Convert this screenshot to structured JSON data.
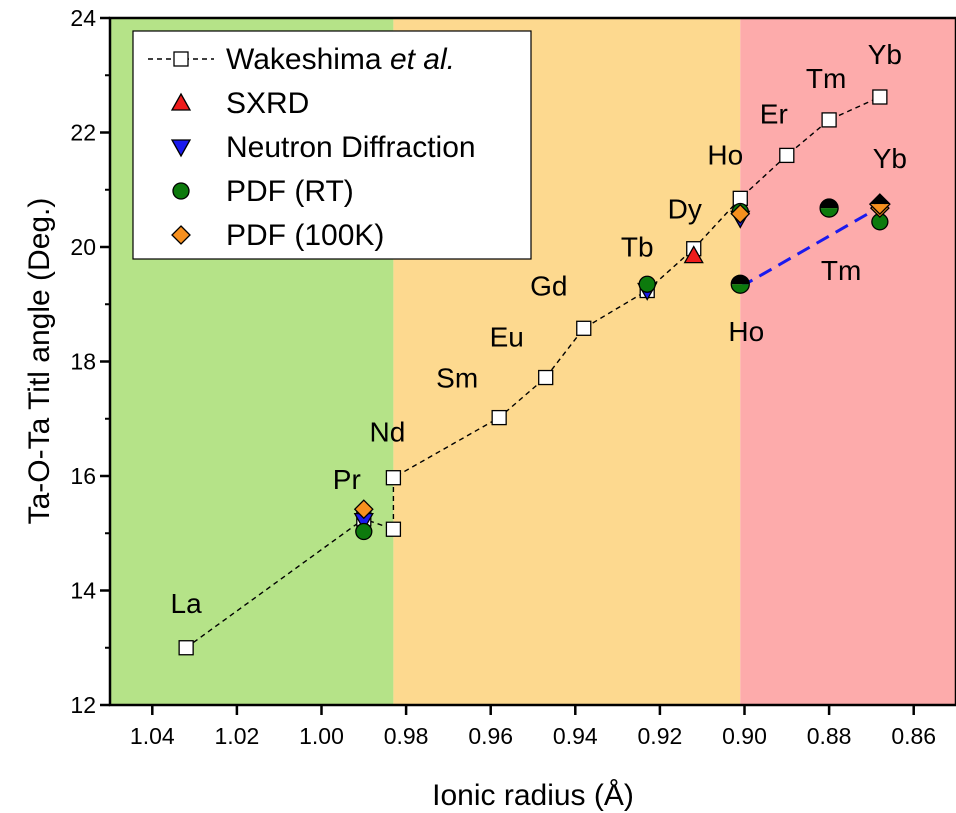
{
  "chart_data": {
    "type": "scatter",
    "xlabel": "Ionic radius (Å)",
    "ylabel": "Ta-O-Ta Titl angle (Deg.)",
    "xlim": [
      1.05,
      0.85
    ],
    "ylim": [
      12,
      24
    ],
    "x_reversed": true,
    "x_ticks": [
      "1.04",
      "1.02",
      "1.00",
      "0.98",
      "0.96",
      "0.94",
      "0.92",
      "0.90",
      "0.88",
      "0.86"
    ],
    "y_ticks": [
      "12",
      "14",
      "16",
      "18",
      "20",
      "22",
      "24"
    ],
    "background_bands": [
      {
        "x_from": 1.05,
        "x_to": 0.983,
        "color": "#b5e388"
      },
      {
        "x_from": 0.983,
        "x_to": 0.901,
        "color": "#fdd98f"
      },
      {
        "x_from": 0.901,
        "x_to": 0.85,
        "color": "#fdabab"
      }
    ],
    "legend_position": "top-left",
    "series": [
      {
        "name": "Wakeshima",
        "name_suffix": "et al.",
        "marker": "open-square",
        "color": "#000000",
        "line": "dashed",
        "points": [
          {
            "x": 1.032,
            "y": 13.0,
            "label": "La"
          },
          {
            "x": 0.99,
            "y": 15.25,
            "label": "Pr"
          },
          {
            "x": 0.983,
            "y": 15.07,
            "label": ""
          },
          {
            "x": 0.983,
            "y": 15.97,
            "label": "Nd"
          },
          {
            "x": 0.958,
            "y": 17.02,
            "label": "Sm"
          },
          {
            "x": 0.947,
            "y": 17.72,
            "label": "Eu"
          },
          {
            "x": 0.938,
            "y": 18.58,
            "label": "Gd"
          },
          {
            "x": 0.923,
            "y": 19.24,
            "label": "Tb"
          },
          {
            "x": 0.912,
            "y": 19.97,
            "label": "Dy"
          },
          {
            "x": 0.901,
            "y": 20.85,
            "label": "Ho"
          },
          {
            "x": 0.89,
            "y": 21.6,
            "label": "Er"
          },
          {
            "x": 0.88,
            "y": 22.22,
            "label": "Tm"
          },
          {
            "x": 0.868,
            "y": 22.62,
            "label": "Yb"
          }
        ]
      },
      {
        "name": "SXRD",
        "marker": "triangle-up",
        "color": "#ee1c1c",
        "points": [
          {
            "x": 0.912,
            "y": 19.85
          }
        ]
      },
      {
        "name": "Neutron Diffraction",
        "marker": "triangle-down",
        "color": "#1a1aee",
        "points": [
          {
            "x": 0.99,
            "y": 15.22
          },
          {
            "x": 0.923,
            "y": 19.24
          },
          {
            "x": 0.901,
            "y": 20.5
          }
        ]
      },
      {
        "name": "PDF (RT)",
        "marker": "circle",
        "color": "#0d7a0d",
        "points": [
          {
            "x": 0.99,
            "y": 15.03
          },
          {
            "x": 0.923,
            "y": 19.35
          },
          {
            "x": 0.901,
            "y": 20.62
          },
          {
            "x": 0.868,
            "y": 20.44
          }
        ]
      },
      {
        "name": "PDF (100K)",
        "marker": "diamond",
        "color": "#f7901e",
        "points": [
          {
            "x": 0.99,
            "y": 15.42
          },
          {
            "x": 0.901,
            "y": 20.58
          },
          {
            "x": 0.868,
            "y": 20.68
          }
        ]
      }
    ],
    "half_filled_points": [
      {
        "x": 0.901,
        "y": 19.35,
        "label": "Ho",
        "top_color": "#000000",
        "bottom_color": "#0d7a0d",
        "shape": "circle"
      },
      {
        "x": 0.88,
        "y": 20.68,
        "label": "Tm",
        "top_color": "#000000",
        "bottom_color": "#0d7a0d",
        "shape": "circle"
      },
      {
        "x": 0.868,
        "y": 20.75,
        "label": "Yb",
        "top_color": "#000000",
        "bottom_color": "#f7901e",
        "shape": "diamond"
      }
    ],
    "trend_line": {
      "style": "dashed",
      "color": "#1a1aee",
      "from": {
        "x": 0.901,
        "y": 19.3
      },
      "to": {
        "x": 0.868,
        "y": 20.7
      }
    }
  }
}
